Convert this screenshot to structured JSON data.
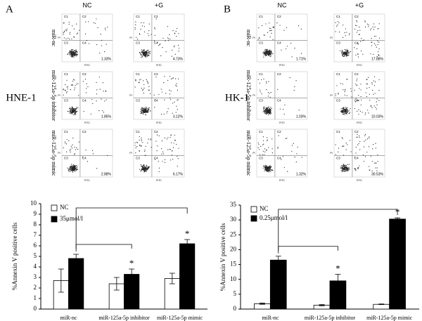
{
  "figure": {
    "panels": [
      {
        "letter": "A",
        "cell_line": "HNE-1",
        "columns": [
          "NC",
          "+G"
        ],
        "rows": [
          {
            "label": "miR-nc",
            "percentages": [
              "1.33%",
              "4.73%"
            ]
          },
          {
            "label": "miR-125a-5p inhibitor",
            "percentages": [
              "1.85%",
              "3.12%"
            ]
          },
          {
            "label": "miR-125a-5p mimic",
            "percentages": [
              "2.88%",
              "6.17%"
            ]
          }
        ]
      },
      {
        "letter": "B",
        "cell_line": "HK-1",
        "columns": [
          "NC",
          "+G"
        ],
        "rows": [
          {
            "label": "miR-nc",
            "percentages": [
              "1.71%",
              "17.88%"
            ]
          },
          {
            "label": "miR-125a-5p inhibitor",
            "percentages": [
              "1.03%",
              "10.03%"
            ]
          },
          {
            "label": "miR-125a-5p mimic",
            "percentages": [
              "1.32%",
              "30.53%"
            ]
          }
        ]
      }
    ],
    "quadrant_labels": [
      "C1",
      "C2",
      "C3",
      "C4"
    ],
    "flow_x_label": "FITC",
    "flow_y_label": "PI"
  },
  "chart_data": [
    {
      "type": "bar",
      "y_label": "%Annexin V positive cells",
      "categories": [
        "miR-nc",
        "miR-125a-5p inhibitor",
        "miR-125a-5p mimic"
      ],
      "series": [
        {
          "name": "NC",
          "color": "#ffffff",
          "values": [
            2.7,
            2.4,
            2.9
          ],
          "errors": [
            1.1,
            0.6,
            0.5
          ]
        },
        {
          "name": "35μmol/l",
          "color": "#000000",
          "values": [
            4.8,
            3.3,
            6.2
          ],
          "errors": [
            0.4,
            0.5,
            0.4
          ]
        }
      ],
      "annotations": [
        "*",
        "*"
      ],
      "ylim": [
        0,
        10
      ],
      "yticks": [
        0,
        1,
        2,
        3,
        4,
        5,
        6,
        7,
        8,
        9,
        10
      ],
      "legend": "top-left"
    },
    {
      "type": "bar",
      "y_label": "%Annexin V positive cells",
      "categories": [
        "miR-nc",
        "miR-125a-5p inhibitor",
        "miR-125a-5p mimic"
      ],
      "series": [
        {
          "name": "NC",
          "color": "#ffffff",
          "values": [
            1.8,
            1.3,
            1.6
          ],
          "errors": [
            0.2,
            0.2,
            0.1
          ]
        },
        {
          "name": "0.25μmol/l",
          "color": "#000000",
          "values": [
            16.5,
            9.5,
            30.3
          ],
          "errors": [
            1.3,
            2.2,
            0.4
          ]
        }
      ],
      "annotations": [
        "*",
        "*"
      ],
      "ylim": [
        0,
        35
      ],
      "yticks": [
        0,
        5,
        10,
        15,
        20,
        25,
        30,
        35
      ],
      "legend": "top-left"
    }
  ]
}
